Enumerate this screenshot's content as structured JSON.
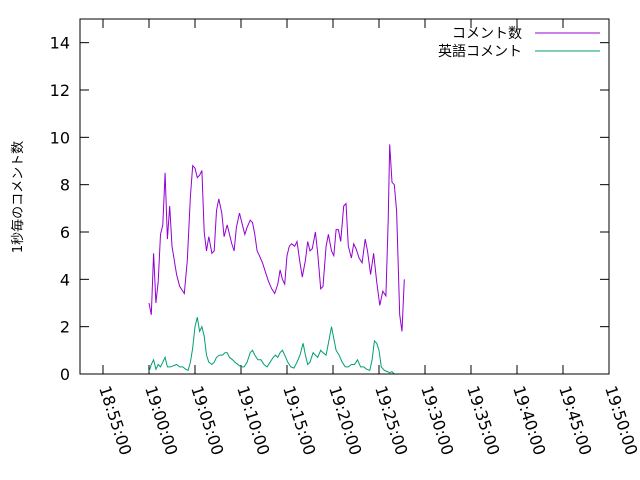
{
  "chart_data": {
    "type": "line",
    "title": "",
    "xlabel": "",
    "ylabel": "1秒毎のコメント数",
    "ylim": [
      0,
      15
    ],
    "yticks": [
      "0",
      "2",
      "4",
      "6",
      "8",
      "10",
      "12",
      "14"
    ],
    "xlim": [
      "18:52:30",
      "19:50:00"
    ],
    "xticks": [
      "18:55:00",
      "19:00:00",
      "19:05:00",
      "19:10:00",
      "19:15:00",
      "19:20:00",
      "19:25:00",
      "19:30:00",
      "19:35:00",
      "19:40:00",
      "19:45:00",
      "19:50:00"
    ],
    "legend": "top-right",
    "grid": false,
    "series": [
      {
        "name": "コメント数",
        "color": "#9400d3",
        "points": [
          [
            "19:00:00",
            3.0
          ],
          [
            "19:00:15",
            2.5
          ],
          [
            "19:00:30",
            5.1
          ],
          [
            "19:00:45",
            3.0
          ],
          [
            "19:01:00",
            3.9
          ],
          [
            "19:01:15",
            5.9
          ],
          [
            "19:01:30",
            6.3
          ],
          [
            "19:01:45",
            8.5
          ],
          [
            "19:02:00",
            5.7
          ],
          [
            "19:02:15",
            7.1
          ],
          [
            "19:02:30",
            5.4
          ],
          [
            "19:03:00",
            4.2
          ],
          [
            "19:03:20",
            3.7
          ],
          [
            "19:03:50",
            3.4
          ],
          [
            "19:04:10",
            4.8
          ],
          [
            "19:04:30",
            7.5
          ],
          [
            "19:04:45",
            8.8
          ],
          [
            "19:05:00",
            8.7
          ],
          [
            "19:05:15",
            8.3
          ],
          [
            "19:05:30",
            8.4
          ],
          [
            "19:05:45",
            8.6
          ],
          [
            "19:06:00",
            6.0
          ],
          [
            "19:06:15",
            5.2
          ],
          [
            "19:06:30",
            5.8
          ],
          [
            "19:06:50",
            5.1
          ],
          [
            "19:07:05",
            5.2
          ],
          [
            "19:07:20",
            6.9
          ],
          [
            "19:07:35",
            7.4
          ],
          [
            "19:07:55",
            6.8
          ],
          [
            "19:08:10",
            5.8
          ],
          [
            "19:08:30",
            6.3
          ],
          [
            "19:08:45",
            5.9
          ],
          [
            "19:09:00",
            5.5
          ],
          [
            "19:09:15",
            5.2
          ],
          [
            "19:09:30",
            6.2
          ],
          [
            "19:09:50",
            6.8
          ],
          [
            "19:10:05",
            6.4
          ],
          [
            "19:10:25",
            5.9
          ],
          [
            "19:10:40",
            6.2
          ],
          [
            "19:11:00",
            6.5
          ],
          [
            "19:11:15",
            6.4
          ],
          [
            "19:11:30",
            5.9
          ],
          [
            "19:11:45",
            5.2
          ],
          [
            "19:12:00",
            5.0
          ],
          [
            "19:12:20",
            4.7
          ],
          [
            "19:12:40",
            4.3
          ],
          [
            "19:13:00",
            3.9
          ],
          [
            "19:13:20",
            3.6
          ],
          [
            "19:13:40",
            3.4
          ],
          [
            "19:14:00",
            3.8
          ],
          [
            "19:14:15",
            4.4
          ],
          [
            "19:14:30",
            4.0
          ],
          [
            "19:14:45",
            3.8
          ],
          [
            "19:15:00",
            5.0
          ],
          [
            "19:15:15",
            5.4
          ],
          [
            "19:15:30",
            5.5
          ],
          [
            "19:15:50",
            5.4
          ],
          [
            "19:16:05",
            5.6
          ],
          [
            "19:16:25",
            4.7
          ],
          [
            "19:16:40",
            4.1
          ],
          [
            "19:17:00",
            4.8
          ],
          [
            "19:17:15",
            5.6
          ],
          [
            "19:17:30",
            5.2
          ],
          [
            "19:17:45",
            5.3
          ],
          [
            "19:18:05",
            6.0
          ],
          [
            "19:18:20",
            5.1
          ],
          [
            "19:18:40",
            3.6
          ],
          [
            "19:18:55",
            3.7
          ],
          [
            "19:19:15",
            5.4
          ],
          [
            "19:19:30",
            5.9
          ],
          [
            "19:19:50",
            5.2
          ],
          [
            "19:20:05",
            5.0
          ],
          [
            "19:20:20",
            6.1
          ],
          [
            "19:20:35",
            6.1
          ],
          [
            "19:20:50",
            5.6
          ],
          [
            "19:21:10",
            7.1
          ],
          [
            "19:21:25",
            7.2
          ],
          [
            "19:21:40",
            5.4
          ],
          [
            "19:22:00",
            4.9
          ],
          [
            "19:22:15",
            5.5
          ],
          [
            "19:22:30",
            5.3
          ],
          [
            "19:22:50",
            4.9
          ],
          [
            "19:23:10",
            4.7
          ],
          [
            "19:23:30",
            5.7
          ],
          [
            "19:23:45",
            5.2
          ],
          [
            "19:24:05",
            4.2
          ],
          [
            "19:24:25",
            5.1
          ],
          [
            "19:24:45",
            3.9
          ],
          [
            "19:25:05",
            2.9
          ],
          [
            "19:25:25",
            3.5
          ],
          [
            "19:25:45",
            3.3
          ],
          [
            "19:26:00",
            6.5
          ],
          [
            "19:26:10",
            9.7
          ],
          [
            "19:26:25",
            8.1
          ],
          [
            "19:26:40",
            8.0
          ],
          [
            "19:26:55",
            6.9
          ],
          [
            "19:27:15",
            2.5
          ],
          [
            "19:27:30",
            1.8
          ],
          [
            "19:27:45",
            4.0
          ]
        ]
      },
      {
        "name": "英語コメント",
        "color": "#009e73",
        "points": [
          [
            "19:00:00",
            0.1
          ],
          [
            "19:00:15",
            0.4
          ],
          [
            "19:00:30",
            0.6
          ],
          [
            "19:00:45",
            0.2
          ],
          [
            "19:01:00",
            0.4
          ],
          [
            "19:01:15",
            0.3
          ],
          [
            "19:01:30",
            0.5
          ],
          [
            "19:01:45",
            0.7
          ],
          [
            "19:02:00",
            0.3
          ],
          [
            "19:02:20",
            0.3
          ],
          [
            "19:02:40",
            0.35
          ],
          [
            "19:03:00",
            0.4
          ],
          [
            "19:03:20",
            0.3
          ],
          [
            "19:03:40",
            0.3
          ],
          [
            "19:04:00",
            0.2
          ],
          [
            "19:04:15",
            0.15
          ],
          [
            "19:04:30",
            0.5
          ],
          [
            "19:04:45",
            1.1
          ],
          [
            "19:05:00",
            2.0
          ],
          [
            "19:05:15",
            2.4
          ],
          [
            "19:05:30",
            1.8
          ],
          [
            "19:05:45",
            2.0
          ],
          [
            "19:06:00",
            1.6
          ],
          [
            "19:06:15",
            0.8
          ],
          [
            "19:06:30",
            0.5
          ],
          [
            "19:06:50",
            0.4
          ],
          [
            "19:07:05",
            0.5
          ],
          [
            "19:07:20",
            0.7
          ],
          [
            "19:07:40",
            0.8
          ],
          [
            "19:08:00",
            0.8
          ],
          [
            "19:08:15",
            0.9
          ],
          [
            "19:08:30",
            0.9
          ],
          [
            "19:08:45",
            0.7
          ],
          [
            "19:09:05",
            0.6
          ],
          [
            "19:09:20",
            0.5
          ],
          [
            "19:09:40",
            0.4
          ],
          [
            "19:10:00",
            0.3
          ],
          [
            "19:10:20",
            0.3
          ],
          [
            "19:10:40",
            0.5
          ],
          [
            "19:11:00",
            0.9
          ],
          [
            "19:11:15",
            1.0
          ],
          [
            "19:11:30",
            0.8
          ],
          [
            "19:11:50",
            0.6
          ],
          [
            "19:12:10",
            0.6
          ],
          [
            "19:12:30",
            0.4
          ],
          [
            "19:12:50",
            0.3
          ],
          [
            "19:13:10",
            0.5
          ],
          [
            "19:13:30",
            0.7
          ],
          [
            "19:13:45",
            0.8
          ],
          [
            "19:14:00",
            0.7
          ],
          [
            "19:14:15",
            0.9
          ],
          [
            "19:14:30",
            1.0
          ],
          [
            "19:14:45",
            0.8
          ],
          [
            "19:15:05",
            0.5
          ],
          [
            "19:15:25",
            0.3
          ],
          [
            "19:15:45",
            0.25
          ],
          [
            "19:16:05",
            0.5
          ],
          [
            "19:16:25",
            0.8
          ],
          [
            "19:16:45",
            1.3
          ],
          [
            "19:17:00",
            0.8
          ],
          [
            "19:17:15",
            0.4
          ],
          [
            "19:17:30",
            0.5
          ],
          [
            "19:17:50",
            0.9
          ],
          [
            "19:18:05",
            0.8
          ],
          [
            "19:18:20",
            0.7
          ],
          [
            "19:18:40",
            1.0
          ],
          [
            "19:18:55",
            0.9
          ],
          [
            "19:19:15",
            0.8
          ],
          [
            "19:19:30",
            1.3
          ],
          [
            "19:19:50",
            2.0
          ],
          [
            "19:20:05",
            1.5
          ],
          [
            "19:20:20",
            1.0
          ],
          [
            "19:20:40",
            0.8
          ],
          [
            "19:21:00",
            0.5
          ],
          [
            "19:21:20",
            0.3
          ],
          [
            "19:21:40",
            0.3
          ],
          [
            "19:22:00",
            0.4
          ],
          [
            "19:22:20",
            0.4
          ],
          [
            "19:22:40",
            0.6
          ],
          [
            "19:23:00",
            0.3
          ],
          [
            "19:23:20",
            0.3
          ],
          [
            "19:23:40",
            0.2
          ],
          [
            "19:24:00",
            0.15
          ],
          [
            "19:24:15",
            0.6
          ],
          [
            "19:24:30",
            1.4
          ],
          [
            "19:24:45",
            1.3
          ],
          [
            "19:25:00",
            1.0
          ],
          [
            "19:25:15",
            0.3
          ],
          [
            "19:25:35",
            0.15
          ],
          [
            "19:25:55",
            0.1
          ],
          [
            "19:26:10",
            0.05
          ],
          [
            "19:26:25",
            0.1
          ],
          [
            "19:26:40",
            0.0
          ]
        ]
      }
    ]
  }
}
